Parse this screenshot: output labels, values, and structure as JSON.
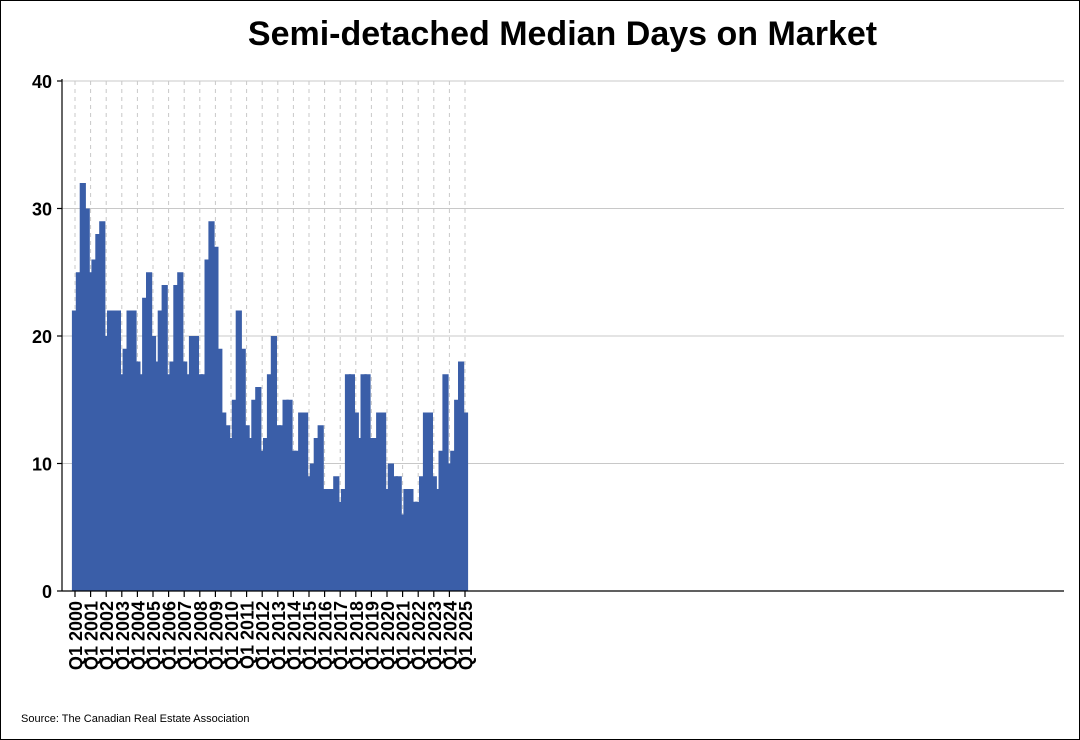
{
  "chart_data": {
    "type": "bar",
    "title": "Semi-detached Median Days on Market",
    "source": "Source: The Canadian Real Estate Association",
    "xlabel": "",
    "ylabel": "",
    "ylim": [
      0,
      40
    ],
    "yticks": [
      0,
      10,
      20,
      30,
      40
    ],
    "grid": true,
    "bar_color": "#3a5ea8",
    "x_tick_labels": [
      "Q1 2000",
      "Q1 2001",
      "Q1 2002",
      "Q1 2003",
      "Q1 2004",
      "Q1 2005",
      "Q1 2006",
      "Q1 2007",
      "Q1 2008",
      "Q1 2009",
      "Q1 2010",
      "Q1 2011",
      "Q1 2012",
      "Q1 2013",
      "Q1 2014",
      "Q1 2015",
      "Q1 2016",
      "Q1 2017",
      "Q1 2018",
      "Q1 2019",
      "Q1 2020",
      "Q1 2021",
      "Q1 2022",
      "Q1 2023",
      "Q1 2024",
      "Q1 2025"
    ],
    "categories": [
      "Q1 2000",
      "Q2 2000",
      "Q3 2000",
      "Q4 2000",
      "Q1 2001",
      "Q2 2001",
      "Q3 2001",
      "Q4 2001",
      "Q1 2002",
      "Q2 2002",
      "Q3 2002",
      "Q4 2002",
      "Q1 2003",
      "Q2 2003",
      "Q3 2003",
      "Q4 2003",
      "Q1 2004",
      "Q2 2004",
      "Q3 2004",
      "Q4 2004",
      "Q1 2005",
      "Q2 2005",
      "Q3 2005",
      "Q4 2005",
      "Q1 2006",
      "Q2 2006",
      "Q3 2006",
      "Q4 2006",
      "Q1 2007",
      "Q2 2007",
      "Q3 2007",
      "Q4 2007",
      "Q1 2008",
      "Q2 2008",
      "Q3 2008",
      "Q4 2008",
      "Q1 2009",
      "Q2 2009",
      "Q3 2009",
      "Q4 2009",
      "Q1 2010",
      "Q2 2010",
      "Q3 2010",
      "Q4 2010",
      "Q1 2011",
      "Q2 2011",
      "Q3 2011",
      "Q4 2011",
      "Q1 2012",
      "Q2 2012",
      "Q3 2012",
      "Q4 2012",
      "Q1 2013",
      "Q2 2013",
      "Q3 2013",
      "Q4 2013",
      "Q1 2014",
      "Q2 2014",
      "Q3 2014",
      "Q4 2014",
      "Q1 2015",
      "Q2 2015",
      "Q3 2015",
      "Q4 2015",
      "Q1 2016",
      "Q2 2016",
      "Q3 2016",
      "Q4 2016",
      "Q1 2017",
      "Q2 2017",
      "Q3 2017",
      "Q4 2017",
      "Q1 2018",
      "Q2 2018",
      "Q3 2018",
      "Q4 2018",
      "Q1 2019",
      "Q2 2019",
      "Q3 2019",
      "Q4 2019",
      "Q1 2020",
      "Q2 2020",
      "Q3 2020",
      "Q4 2020",
      "Q1 2021",
      "Q2 2021",
      "Q3 2021",
      "Q4 2021",
      "Q1 2022",
      "Q2 2022",
      "Q3 2022",
      "Q4 2022",
      "Q1 2023",
      "Q2 2023",
      "Q3 2023",
      "Q4 2023",
      "Q1 2024",
      "Q2 2024",
      "Q3 2024",
      "Q4 2024",
      "Q1 2025"
    ],
    "values": [
      22,
      25,
      32,
      30,
      25,
      26,
      28,
      29,
      20,
      22,
      22,
      22,
      17,
      19,
      22,
      22,
      18,
      17,
      23,
      25,
      20,
      18,
      22,
      24,
      17,
      18,
      24,
      25,
      18,
      17,
      20,
      20,
      17,
      17,
      26,
      29,
      27,
      19,
      14,
      13,
      12,
      15,
      22,
      19,
      13,
      12,
      15,
      16,
      11,
      12,
      17,
      20,
      13,
      13,
      15,
      15,
      11,
      11,
      14,
      14,
      9,
      10,
      12,
      13,
      8,
      8,
      8,
      9,
      7,
      8,
      17,
      17,
      14,
      12,
      17,
      17,
      12,
      12,
      14,
      14,
      8,
      10,
      9,
      9,
      6,
      8,
      8,
      7,
      7,
      9,
      14,
      14,
      9,
      8,
      11,
      17,
      10,
      11,
      15,
      18,
      14
    ]
  }
}
